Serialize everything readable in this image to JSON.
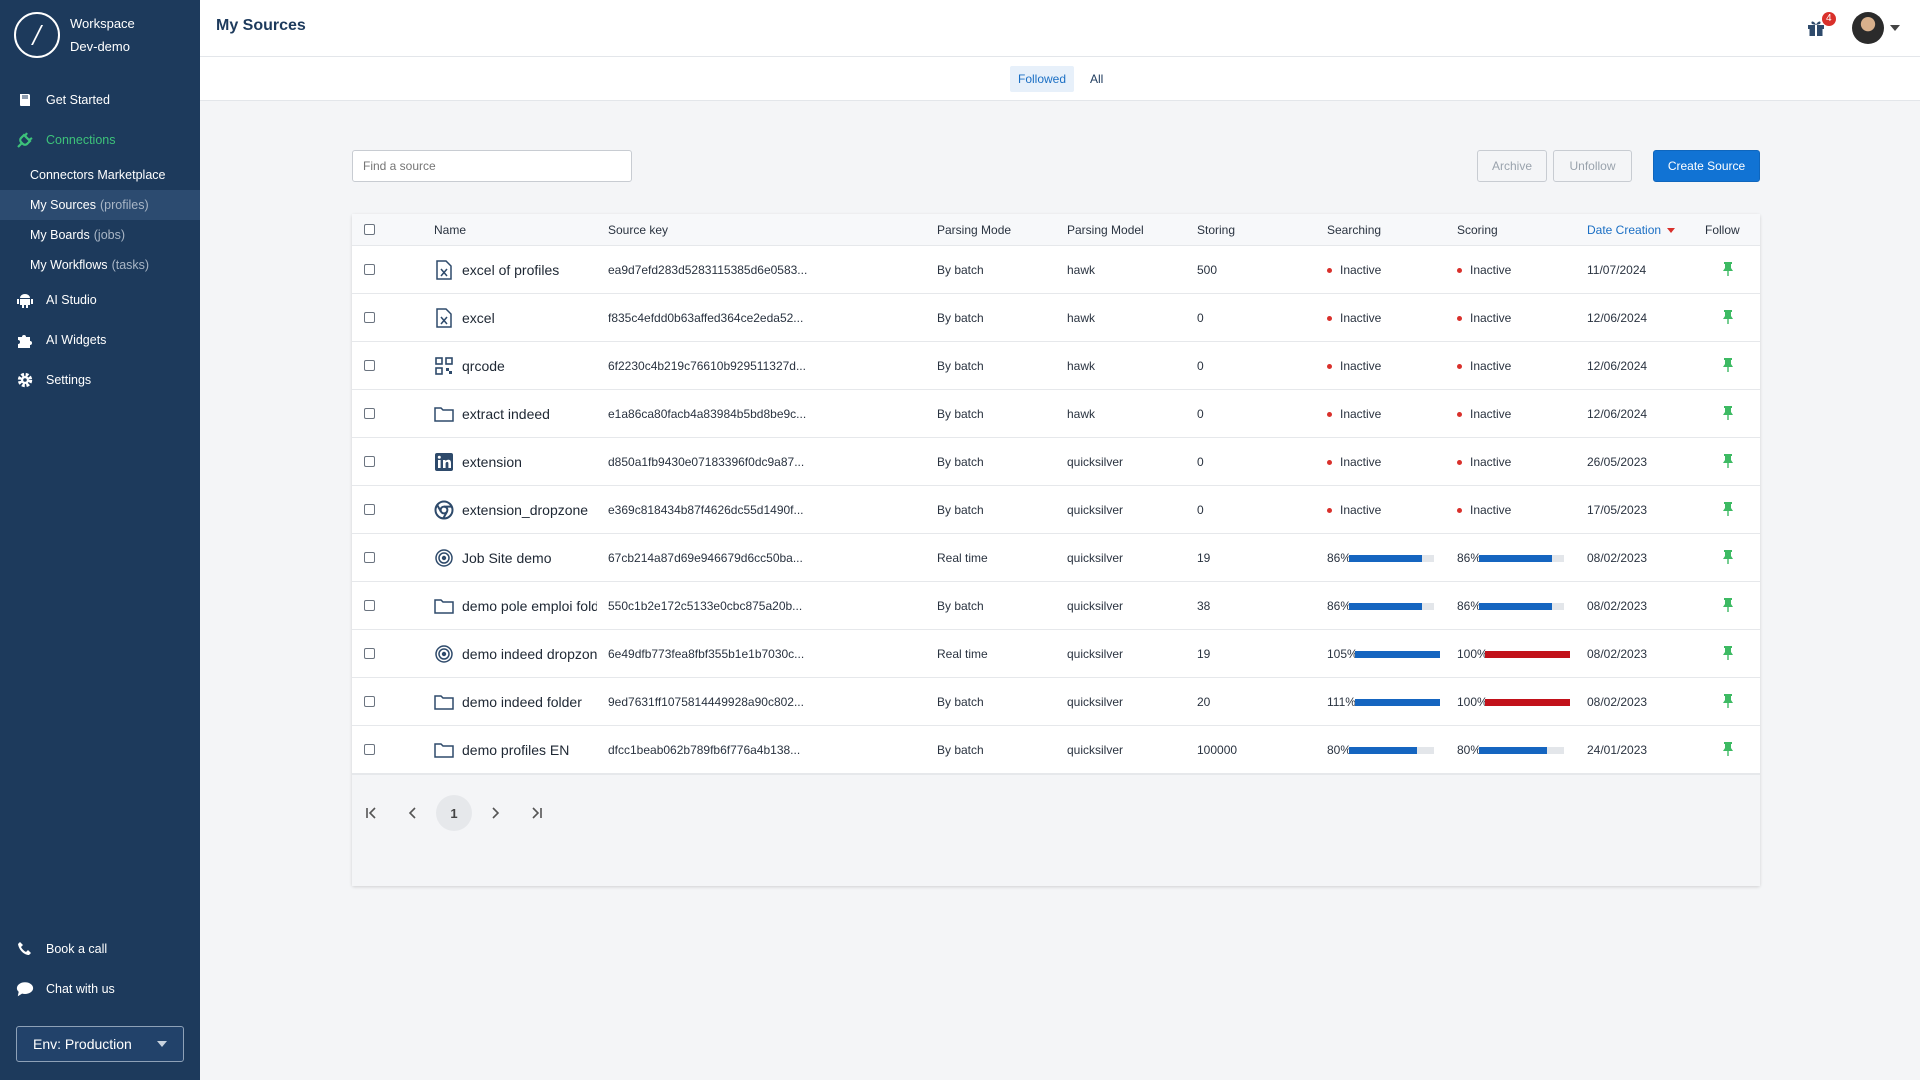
{
  "sidebar": {
    "workspace_label": "Workspace",
    "workspace_name": "Dev-demo",
    "logo_glyph": "/",
    "nav": [
      {
        "label": "Get Started",
        "icon": "book-icon"
      },
      {
        "label": "Connections",
        "icon": "plug-icon"
      },
      {
        "label": "AI Studio",
        "icon": "android-icon"
      },
      {
        "label": "AI Widgets",
        "icon": "puzzle-icon"
      },
      {
        "label": "Settings",
        "icon": "gear-icon"
      }
    ],
    "sub": [
      {
        "label": "Connectors Marketplace",
        "hint": ""
      },
      {
        "label": "My Sources",
        "hint": "(profiles)"
      },
      {
        "label": "My Boards",
        "hint": "(jobs)"
      },
      {
        "label": "My Workflows",
        "hint": "(tasks)"
      }
    ],
    "book_call": "Book a call",
    "chat": "Chat with us",
    "env": "Env: Production",
    "active_color": "#3dc27a",
    "bg_color": "#1d3a5c"
  },
  "header": {
    "title": "My Sources",
    "notifications": "4"
  },
  "tabs": {
    "followed": "Followed",
    "all": "All"
  },
  "toolbar": {
    "search_placeholder": "Find a source",
    "archive": "Archive",
    "unfollow": "Unfollow",
    "create": "Create Source"
  },
  "columns": {
    "name": "Name",
    "key": "Source key",
    "mode": "Parsing Mode",
    "model": "Parsing Model",
    "storing": "Storing",
    "searching": "Searching",
    "scoring": "Scoring",
    "date": "Date Creation",
    "follow": "Follow"
  },
  "rows": [
    {
      "icon": "excel-icon",
      "name": "excel of profiles",
      "key": "ea9d7efd283d5283115385d6e0583...",
      "mode": "By batch",
      "model": "hawk",
      "storing": "500",
      "search": {
        "status": "Inactive"
      },
      "score": {
        "status": "Inactive"
      },
      "date": "11/07/2024"
    },
    {
      "icon": "excel-icon",
      "name": "excel",
      "key": "f835c4efdd0b63affed364ce2eda52...",
      "mode": "By batch",
      "model": "hawk",
      "storing": "0",
      "search": {
        "status": "Inactive"
      },
      "score": {
        "status": "Inactive"
      },
      "date": "12/06/2024"
    },
    {
      "icon": "qrcode-icon",
      "name": "qrcode",
      "key": "6f2230c4b219c76610b929511327d...",
      "mode": "By batch",
      "model": "hawk",
      "storing": "0",
      "search": {
        "status": "Inactive"
      },
      "score": {
        "status": "Inactive"
      },
      "date": "12/06/2024"
    },
    {
      "icon": "folder-icon",
      "name": "extract indeed",
      "key": "e1a86ca80facb4a83984b5bd8be9c...",
      "mode": "By batch",
      "model": "hawk",
      "storing": "0",
      "search": {
        "status": "Inactive"
      },
      "score": {
        "status": "Inactive"
      },
      "date": "12/06/2024"
    },
    {
      "icon": "linkedin-icon",
      "name": "extension",
      "key": "d850a1fb9430e07183396f0dc9a87...",
      "mode": "By batch",
      "model": "quicksilver",
      "storing": "0",
      "search": {
        "status": "Inactive"
      },
      "score": {
        "status": "Inactive"
      },
      "date": "26/05/2023"
    },
    {
      "icon": "chrome-icon",
      "name": "extension_dropzone",
      "key": "e369c818434b87f4626dc55d1490f...",
      "mode": "By batch",
      "model": "quicksilver",
      "storing": "0",
      "search": {
        "status": "Inactive"
      },
      "score": {
        "status": "Inactive"
      },
      "date": "17/05/2023"
    },
    {
      "icon": "target-icon",
      "name": "Job Site demo",
      "key": "67cb214a87d69e946679d6cc50ba...",
      "mode": "Real time",
      "model": "quicksilver",
      "storing": "19",
      "search": {
        "pct": "86%",
        "value": 0.86
      },
      "score": {
        "pct": "86%",
        "value": 0.86
      },
      "date": "08/02/2023"
    },
    {
      "icon": "folder-icon",
      "name": "demo pole emploi fold",
      "key": "550c1b2e172c5133e0cbc875a20b...",
      "mode": "By batch",
      "model": "quicksilver",
      "storing": "38",
      "search": {
        "pct": "86%",
        "value": 0.86
      },
      "score": {
        "pct": "86%",
        "value": 0.86
      },
      "date": "08/02/2023"
    },
    {
      "icon": "target-icon",
      "name": "demo indeed dropzone",
      "key": "6e49dfb773fea8fbf355b1e1b7030c...",
      "mode": "Real time",
      "model": "quicksilver",
      "storing": "19",
      "search": {
        "pct": "105%",
        "value": 1.05
      },
      "score": {
        "pct": "100%",
        "value": 1.0
      },
      "date": "08/02/2023"
    },
    {
      "icon": "folder-icon",
      "name": "demo indeed folder",
      "key": "9ed7631ff1075814449928a90c802...",
      "mode": "By batch",
      "model": "quicksilver",
      "storing": "20",
      "search": {
        "pct": "111%",
        "value": 1.11
      },
      "score": {
        "pct": "100%",
        "value": 1.0
      },
      "date": "08/02/2023"
    },
    {
      "icon": "folder-icon",
      "name": "demo profiles EN",
      "key": "dfcc1beab062b789fb6f776a4b138...",
      "mode": "By batch",
      "model": "quicksilver",
      "storing": "100000",
      "search": {
        "pct": "80%",
        "value": 0.8
      },
      "score": {
        "pct": "80%",
        "value": 0.8
      },
      "date": "24/01/2023"
    }
  ],
  "pagination": {
    "current": "1"
  },
  "colors": {
    "primary": "#1173d4",
    "bar_blue": "#1565c0",
    "bar_red": "#c2111a",
    "inactive_dot": "#d9302b",
    "pin": "#3dba63"
  }
}
